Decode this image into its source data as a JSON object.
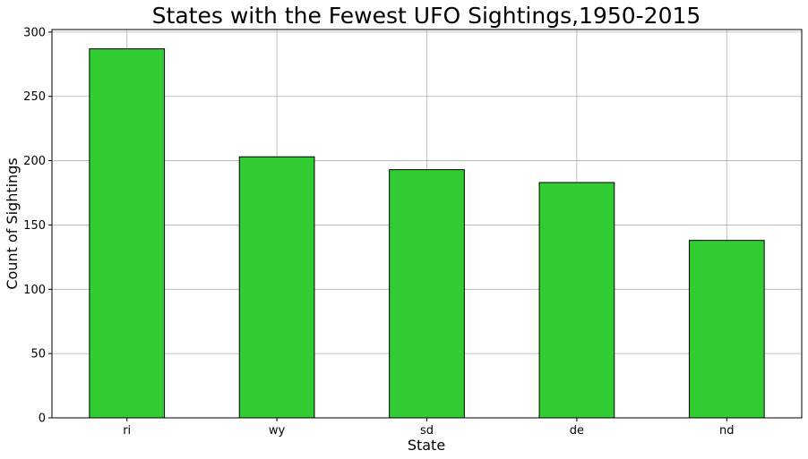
{
  "chart_data": {
    "type": "bar",
    "title": "States with the Fewest UFO Sightings,1950-2015",
    "xlabel": "State",
    "ylabel": "Count of Sightings",
    "categories": [
      "ri",
      "wy",
      "sd",
      "de",
      "nd"
    ],
    "values": [
      287,
      203,
      193,
      183,
      138
    ],
    "ylim": [
      0,
      302
    ],
    "yticks": [
      0,
      50,
      100,
      150,
      200,
      250,
      300
    ],
    "grid": true,
    "bar_color": "#32cd32",
    "edge_color": "#000000"
  }
}
